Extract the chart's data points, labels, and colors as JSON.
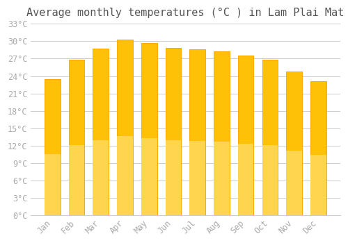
{
  "title": "Average monthly temperatures (°C ) in Lam Plai Mat",
  "months": [
    "Jan",
    "Feb",
    "Mar",
    "Apr",
    "May",
    "Jun",
    "Jul",
    "Aug",
    "Sep",
    "Oct",
    "Nov",
    "Dec"
  ],
  "values": [
    23.5,
    26.8,
    28.7,
    30.3,
    29.7,
    28.9,
    28.6,
    28.2,
    27.5,
    26.8,
    24.8,
    23.1
  ],
  "bar_color_top": "#FFC107",
  "bar_color_bottom": "#FFD54F",
  "bar_edge_color": "#FFA000",
  "background_color": "#ffffff",
  "grid_color": "#cccccc",
  "tick_color": "#aaaaaa",
  "title_color": "#555555",
  "ylim": [
    0,
    33
  ],
  "ytick_step": 3,
  "title_fontsize": 11,
  "tick_fontsize": 8.5,
  "bar_width": 0.65
}
